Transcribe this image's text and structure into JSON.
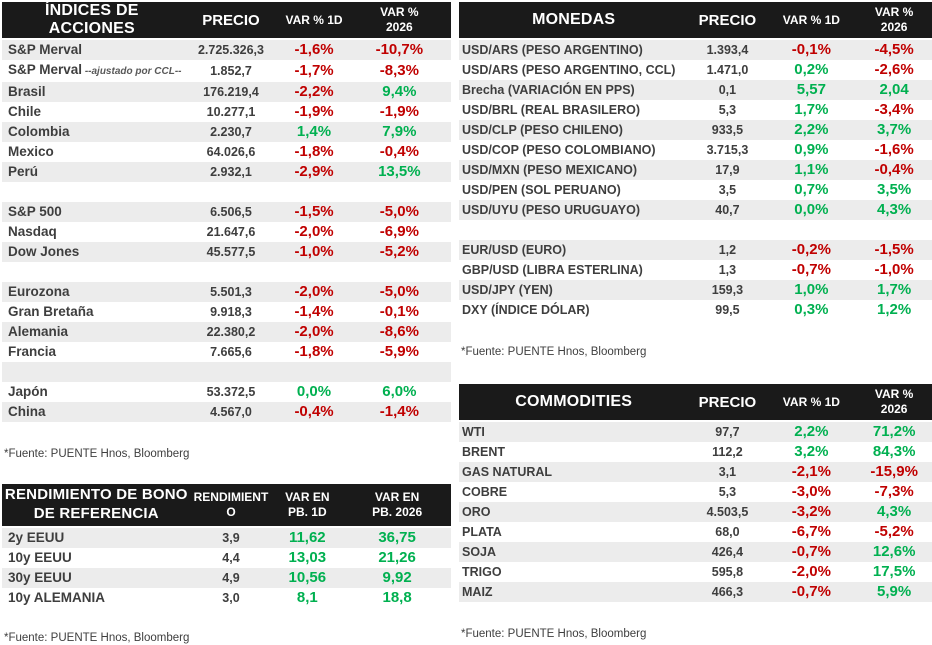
{
  "colors": {
    "header_bg": "#1A1A1A",
    "header_text": "#FFFFFF",
    "row_stripe": "#ECECEC",
    "positive": "#00B050",
    "negative": "#C00000",
    "label_text": "#3E3E3E"
  },
  "tables": {
    "indices": {
      "title": "ÍNDICES DE ACCIONES",
      "col_price": "PRECIO",
      "col_var1d": "VAR % 1D",
      "col_var2026": "VAR % 2026",
      "source": "*Fuente: PUENTE Hnos, Bloomberg",
      "rows": [
        {
          "label": "S&P Merval",
          "price": "2.725.326,3",
          "var1d": "-1,6%",
          "var2026": "-10,7%",
          "shade": true
        },
        {
          "label": "S&P Merval",
          "note": "--ajustado por CCL--",
          "price": "1.852,7",
          "var1d": "-1,7%",
          "var2026": "-8,3%",
          "shade": false
        },
        {
          "label": "Brasil",
          "price": "176.219,4",
          "var1d": "-2,2%",
          "var2026": "9,4%",
          "shade": true
        },
        {
          "label": "Chile",
          "price": "10.277,1",
          "var1d": "-1,9%",
          "var2026": "-1,9%",
          "shade": false
        },
        {
          "label": "Colombia",
          "price": "2.230,7",
          "var1d": "1,4%",
          "var2026": "7,9%",
          "shade": true
        },
        {
          "label": "Mexico",
          "price": "64.026,6",
          "var1d": "-1,8%",
          "var2026": "-0,4%",
          "shade": false
        },
        {
          "label": "Perú",
          "price": "2.932,1",
          "var1d": "-2,9%",
          "var2026": "13,5%",
          "shade": true
        },
        {
          "blank": true,
          "shade": false
        },
        {
          "label": "S&P 500",
          "price": "6.506,5",
          "var1d": "-1,5%",
          "var2026": "-5,0%",
          "shade": true
        },
        {
          "label": "Nasdaq",
          "price": "21.647,6",
          "var1d": "-2,0%",
          "var2026": "-6,9%",
          "shade": false
        },
        {
          "label": "Dow Jones",
          "price": "45.577,5",
          "var1d": "-1,0%",
          "var2026": "-5,2%",
          "shade": true
        },
        {
          "blank": true,
          "shade": false
        },
        {
          "label": "Eurozona",
          "price": "5.501,3",
          "var1d": "-2,0%",
          "var2026": "-5,0%",
          "shade": true
        },
        {
          "label": "Gran Bretaña",
          "price": "9.918,3",
          "var1d": "-1,4%",
          "var2026": "-0,1%",
          "shade": false
        },
        {
          "label": "Alemania",
          "price": "22.380,2",
          "var1d": "-2,0%",
          "var2026": "-8,6%",
          "shade": true
        },
        {
          "label": "Francia",
          "price": "7.665,6",
          "var1d": "-1,8%",
          "var2026": "-5,9%",
          "shade": false
        },
        {
          "blank": true,
          "shade": true
        },
        {
          "label": "Japón",
          "price": "53.372,5",
          "var1d": "0,0%",
          "var2026": "6,0%",
          "shade": false
        },
        {
          "label": "China",
          "price": "4.567,0",
          "var1d": "-0,4%",
          "var2026": "-1,4%",
          "shade": true
        }
      ]
    },
    "bonos": {
      "title": "RENDIMIENTO DE BONO DE REFERENCIA",
      "col_price": "RENDIMIENTO",
      "col_var1d": "VAR EN PB. 1D",
      "col_var2026": "VAR EN PB. 2026",
      "source": "*Fuente: PUENTE Hnos, Bloomberg",
      "rows": [
        {
          "label": "2y EEUU",
          "price": "3,9",
          "var1d": "11,62",
          "var2026": "36,75",
          "shade": true
        },
        {
          "label": "10y EEUU",
          "price": "4,4",
          "var1d": "13,03",
          "var2026": "21,26",
          "shade": false
        },
        {
          "label": "30y EEUU",
          "price": "4,9",
          "var1d": "10,56",
          "var2026": "9,92",
          "shade": true
        },
        {
          "label": "10y ALEMANIA",
          "price": "3,0",
          "var1d": "8,1",
          "var2026": "18,8",
          "shade": false
        }
      ]
    },
    "monedas": {
      "title": "MONEDAS",
      "col_price": "PRECIO",
      "col_var1d": "VAR % 1D",
      "col_var2026": "VAR % 2026",
      "source": "*Fuente: PUENTE Hnos, Bloomberg",
      "rows": [
        {
          "label": "USD/ARS (PESO ARGENTINO)",
          "price": "1.393,4",
          "var1d": "-0,1%",
          "var2026": "-4,5%",
          "shade": true
        },
        {
          "label": "USD/ARS (PESO ARGENTINO, CCL)",
          "price": "1.471,0",
          "var1d": "0,2%",
          "var2026": "-2,6%",
          "shade": false
        },
        {
          "label": "Brecha (VARIACIÓN EN PPS)",
          "price": "0,1",
          "var1d": "5,57",
          "var2026": "2,04",
          "shade": true
        },
        {
          "label": "USD/BRL (REAL BRASILERO)",
          "price": "5,3",
          "var1d": "1,7%",
          "var2026": "-3,4%",
          "shade": false
        },
        {
          "label": "USD/CLP (PESO CHILENO)",
          "price": "933,5",
          "var1d": "2,2%",
          "var2026": "3,7%",
          "shade": true
        },
        {
          "label": "USD/COP (PESO COLOMBIANO)",
          "price": "3.715,3",
          "var1d": "0,9%",
          "var2026": "-1,6%",
          "shade": false
        },
        {
          "label": "USD/MXN (PESO MEXICANO)",
          "price": "17,9",
          "var1d": "1,1%",
          "var2026": "-0,4%",
          "shade": true
        },
        {
          "label": "USD/PEN (SOL PERUANO)",
          "price": "3,5",
          "var1d": "0,7%",
          "var2026": "3,5%",
          "shade": false
        },
        {
          "label": "USD/UYU (PESO URUGUAYO)",
          "price": "40,7",
          "var1d": "0,0%",
          "var2026": "4,3%",
          "shade": true
        },
        {
          "blank": true,
          "shade": false
        },
        {
          "label": "EUR/USD (EURO)",
          "price": "1,2",
          "var1d": "-0,2%",
          "var2026": "-1,5%",
          "shade": true
        },
        {
          "label": "GBP/USD (LIBRA ESTERLINA)",
          "price": "1,3",
          "var1d": "-0,7%",
          "var2026": "-1,0%",
          "shade": false
        },
        {
          "label": "USD/JPY (YEN)",
          "price": "159,3",
          "var1d": "1,0%",
          "var2026": "1,7%",
          "shade": true
        },
        {
          "label": "DXY (ÍNDICE DÓLAR)",
          "price": "99,5",
          "var1d": "0,3%",
          "var2026": "1,2%",
          "shade": false
        }
      ]
    },
    "commodities": {
      "title": "COMMODITIES",
      "col_price": "PRECIO",
      "col_var1d": "VAR % 1D",
      "col_var2026": "VAR % 2026",
      "source": "*Fuente: PUENTE Hnos, Bloomberg",
      "rows": [
        {
          "label": "WTI",
          "price": "97,7",
          "var1d": "2,2%",
          "var2026": "71,2%",
          "shade": true
        },
        {
          "label": "BRENT",
          "price": "112,2",
          "var1d": "3,2%",
          "var2026": "84,3%",
          "shade": false
        },
        {
          "label": "GAS NATURAL",
          "price": "3,1",
          "var1d": "-2,1%",
          "var2026": "-15,9%",
          "shade": true
        },
        {
          "label": "COBRE",
          "price": "5,3",
          "var1d": "-3,0%",
          "var2026": "-7,3%",
          "shade": false
        },
        {
          "label": "ORO",
          "price": "4.503,5",
          "var1d": "-3,2%",
          "var2026": "4,3%",
          "shade": true
        },
        {
          "label": "PLATA",
          "price": "68,0",
          "var1d": "-6,7%",
          "var2026": "-5,2%",
          "shade": false
        },
        {
          "label": "SOJA",
          "price": "426,4",
          "var1d": "-0,7%",
          "var2026": "12,6%",
          "shade": true
        },
        {
          "label": "TRIGO",
          "price": "595,8",
          "var1d": "-2,0%",
          "var2026": "17,5%",
          "shade": false
        },
        {
          "label": "MAIZ",
          "price": "466,3",
          "var1d": "-0,7%",
          "var2026": "5,9%",
          "shade": true
        }
      ]
    }
  }
}
